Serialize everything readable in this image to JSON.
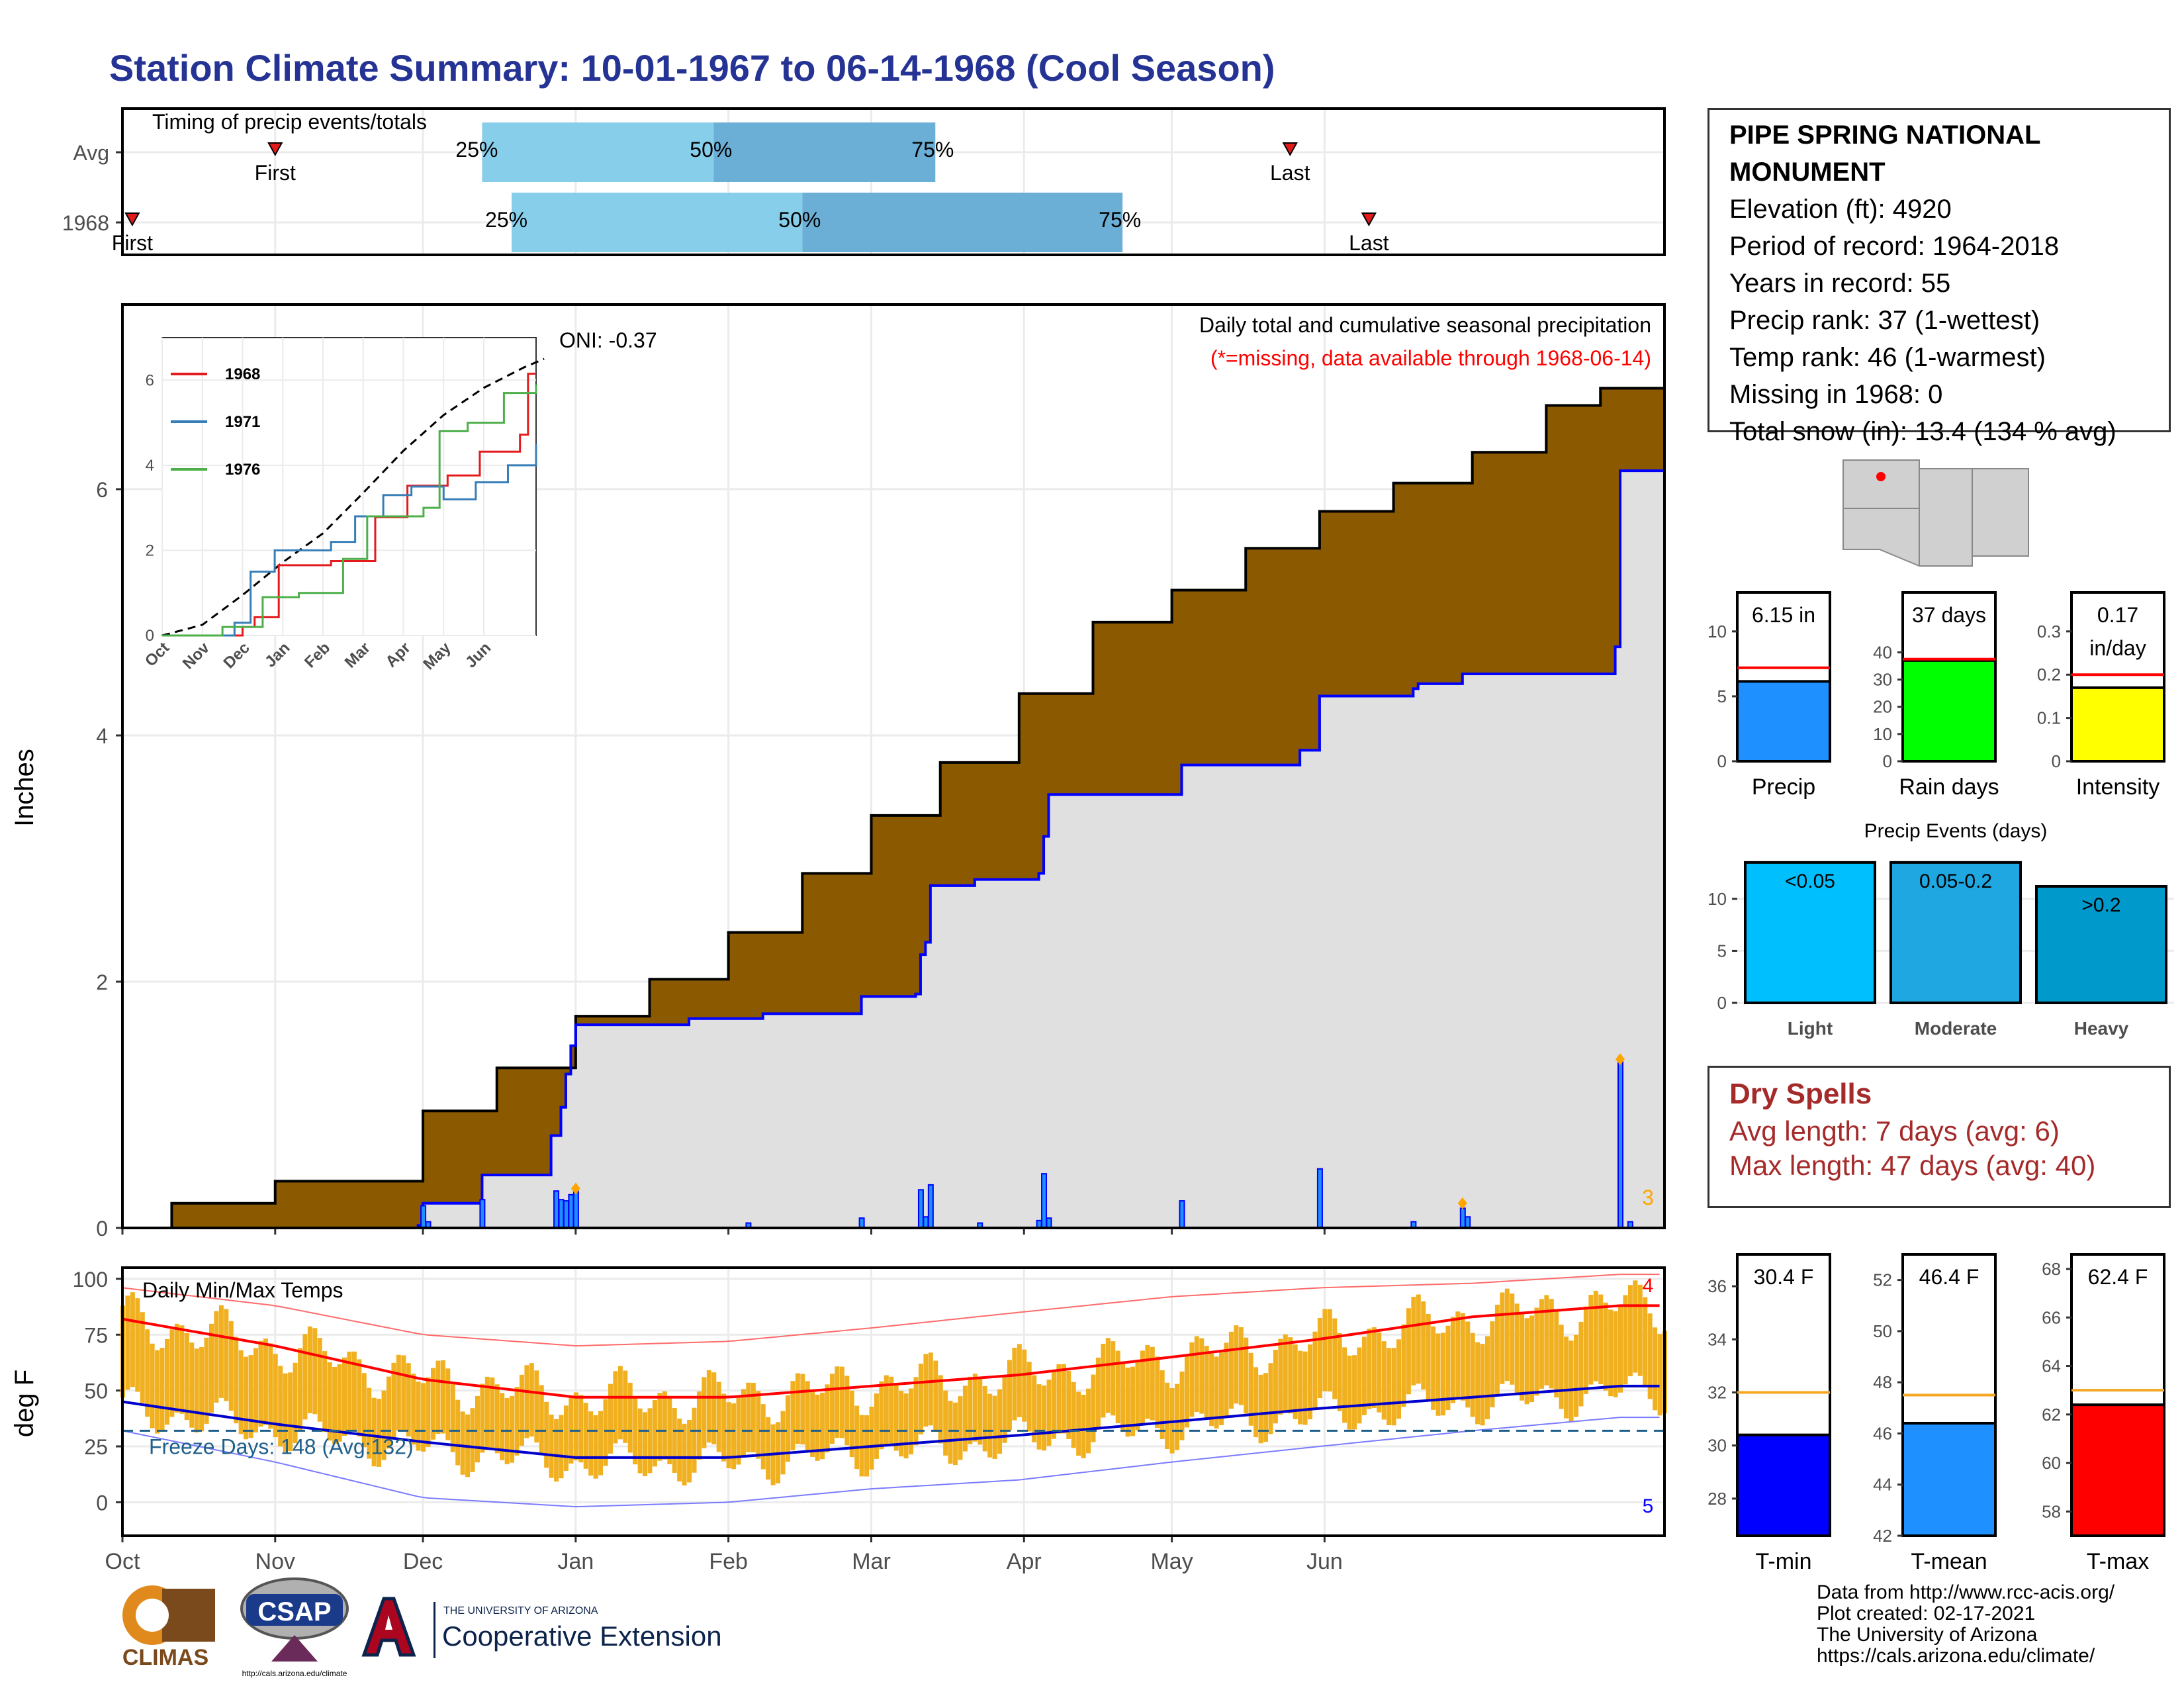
{
  "title": "Station Climate Summary: 10-01-1967 to 06-14-1968 (Cool Season)",
  "station": {
    "name": "PIPE SPRING NATIONAL MONUMENT",
    "elevation": "Elevation (ft): 4920",
    "period": "Period of record: 1964-2018",
    "years": "Years in record: 55",
    "precip_rank": "Precip rank: 37 (1-wettest)",
    "temp_rank": "Temp rank: 46 (1-warmest)",
    "missing": "Missing in 1968: 0",
    "snow": "Total snow (in): 13.4 (134 % avg)"
  },
  "dry_spells": {
    "title": "Dry Spells",
    "avg": "Avg length: 7 days (avg: 6)",
    "max": "Max length: 47 days (avg: 40)"
  },
  "credits": {
    "line1": "Data from http://www.rcc-acis.org/",
    "line2": "Plot created: 02-17-2021",
    "line3": "The University of Arizona",
    "line4": "https://cals.arizona.edu/climate/"
  },
  "logos": {
    "climas": "CLIMAS",
    "csap": "CSAP",
    "csap_url": "http://cals.arizona.edu/climate",
    "ua_small": "THE UNIVERSITY OF ARIZONA",
    "ua_big": "Cooperative Extension"
  },
  "colors": {
    "title": "#253494",
    "brown": "#8b5a00",
    "gray_fill": "#e0e0e0",
    "blue": "#0000ff",
    "light_blue": "#87ceeb",
    "mid_blue": "#6baed6",
    "orange_bar": "#f0b020",
    "red": "#ff0000",
    "dry_spell": "#a52a2a"
  },
  "chart_data": [
    {
      "id": "timing",
      "type": "bar",
      "title": "Timing of precip events/totals",
      "rows": [
        {
          "label": "Avg",
          "first": "Nov 1",
          "p25": "Dec 13",
          "p50": "Jan 29",
          "p75": "Mar 14",
          "last": "May 25"
        },
        {
          "label": "1968",
          "first": "Oct 3",
          "p25": "Dec 19",
          "p50": "Feb 16",
          "p75": "Apr 21",
          "last": "Jun 10"
        }
      ],
      "marker_labels": {
        "first": "First",
        "last": "Last",
        "p25": "25%",
        "p50": "50%",
        "p75": "75%"
      }
    },
    {
      "id": "precip",
      "type": "area",
      "ylabel": "Inches",
      "annotation": "Daily total and cumulative seasonal precipitation",
      "missing_note": "(*=missing, data available through 1968-06-14)",
      "oni": "ONI: -0.37",
      "ylim": [
        0,
        7.5
      ],
      "yticks": [
        0,
        2,
        4,
        6
      ],
      "xticks": [
        "Oct",
        "Nov",
        "Dec",
        "Jan",
        "Feb",
        "Mar",
        "Apr",
        "May",
        "Jun"
      ],
      "count_label": "3",
      "avg_cumulative": [
        [
          0,
          0
        ],
        [
          10,
          0.2
        ],
        [
          31,
          0.38
        ],
        [
          61,
          0.95
        ],
        [
          76,
          1.3
        ],
        [
          92,
          1.72
        ],
        [
          107,
          2.02
        ],
        [
          123,
          2.4
        ],
        [
          138,
          2.88
        ],
        [
          152,
          3.35
        ],
        [
          166,
          3.78
        ],
        [
          182,
          4.34
        ],
        [
          197,
          4.92
        ],
        [
          213,
          5.18
        ],
        [
          228,
          5.52
        ],
        [
          243,
          5.82
        ],
        [
          258,
          6.05
        ],
        [
          274,
          6.3
        ],
        [
          289,
          6.68
        ],
        [
          300,
          6.82
        ],
        [
          313,
          6.92
        ]
      ],
      "cumulative_1968": [
        [
          0,
          0
        ],
        [
          60,
          0.02
        ],
        [
          61,
          0.2
        ],
        [
          72,
          0.2
        ],
        [
          73,
          0.43
        ],
        [
          86,
          0.43
        ],
        [
          87,
          0.75
        ],
        [
          89,
          0.98
        ],
        [
          90,
          1.25
        ],
        [
          91,
          1.48
        ],
        [
          92,
          1.65
        ],
        [
          115,
          1.7
        ],
        [
          130,
          1.74
        ],
        [
          149,
          1.74
        ],
        [
          150,
          1.88
        ],
        [
          161,
          1.9
        ],
        [
          162,
          2.22
        ],
        [
          163,
          2.32
        ],
        [
          164,
          2.78
        ],
        [
          173,
          2.83
        ],
        [
          186,
          2.88
        ],
        [
          187,
          3.18
        ],
        [
          188,
          3.52
        ],
        [
          214,
          3.52
        ],
        [
          215,
          3.76
        ],
        [
          239,
          3.88
        ],
        [
          243,
          4.32
        ],
        [
          262,
          4.38
        ],
        [
          263,
          4.42
        ],
        [
          271,
          4.42
        ],
        [
          272,
          4.5
        ],
        [
          303,
          4.72
        ],
        [
          304,
          6.15
        ],
        [
          313,
          6.15
        ]
      ],
      "daily_precip": [
        [
          61,
          0.18
        ],
        [
          62,
          0.05
        ],
        [
          73,
          0.23
        ],
        [
          88,
          0.3
        ],
        [
          89,
          0.23
        ],
        [
          90,
          0.22
        ],
        [
          91,
          0.27
        ],
        [
          92,
          0.32
        ],
        [
          127,
          0.04
        ],
        [
          150,
          0.08
        ],
        [
          162,
          0.31
        ],
        [
          163,
          0.09
        ],
        [
          164,
          0.35
        ],
        [
          174,
          0.04
        ],
        [
          186,
          0.06
        ],
        [
          187,
          0.44
        ],
        [
          188,
          0.08
        ],
        [
          215,
          0.22
        ],
        [
          243,
          0.48
        ],
        [
          262,
          0.05
        ],
        [
          272,
          0.16
        ],
        [
          273,
          0.09
        ],
        [
          304,
          1.37
        ],
        [
          306,
          0.05
        ]
      ],
      "inset": {
        "xticks": [
          "Oct",
          "Nov",
          "Dec",
          "Jan",
          "Feb",
          "Mar",
          "Apr",
          "May",
          "Jun"
        ],
        "yticks": [
          0,
          2,
          4,
          6
        ],
        "ylim": [
          0,
          7
        ],
        "series": [
          {
            "name": "1968",
            "color": "#e41a1c",
            "values": [
              [
                0,
                0
              ],
              [
                1,
                0
              ],
              [
                2,
                0.2
              ],
              [
                2.3,
                0.43
              ],
              [
                2.9,
                1.65
              ],
              [
                4.2,
                1.75
              ],
              [
                5.3,
                2.78
              ],
              [
                6.1,
                3.52
              ],
              [
                7.1,
                3.76
              ],
              [
                7.9,
                4.32
              ],
              [
                8.9,
                4.72
              ],
              [
                9.1,
                6.15
              ],
              [
                9.3,
                6.15
              ]
            ]
          },
          {
            "name": "1971",
            "color": "#377eb8",
            "values": [
              [
                0,
                0
              ],
              [
                1.8,
                0.3
              ],
              [
                2.2,
                1.5
              ],
              [
                2.8,
                2.0
              ],
              [
                4.2,
                2.2
              ],
              [
                4.8,
                2.8
              ],
              [
                5.5,
                3.3
              ],
              [
                6.2,
                3.5
              ],
              [
                7.0,
                3.2
              ],
              [
                7.8,
                3.6
              ],
              [
                8.6,
                4.0
              ],
              [
                9.3,
                4.5
              ]
            ]
          },
          {
            "name": "1976",
            "color": "#4daf4a",
            "values": [
              [
                0,
                0
              ],
              [
                1.5,
                0.2
              ],
              [
                2.5,
                0.9
              ],
              [
                3.4,
                1.0
              ],
              [
                4.5,
                1.8
              ],
              [
                5.1,
                2.8
              ],
              [
                6.5,
                3.0
              ],
              [
                6.9,
                4.8
              ],
              [
                7.6,
                5.0
              ],
              [
                8.5,
                5.7
              ],
              [
                9.3,
                5.9
              ]
            ]
          }
        ],
        "avg_dashed": [
          [
            0,
            0
          ],
          [
            1,
            0.25
          ],
          [
            2,
            0.95
          ],
          [
            3,
            1.72
          ],
          [
            4,
            2.4
          ],
          [
            5,
            3.35
          ],
          [
            6,
            4.34
          ],
          [
            7,
            5.18
          ],
          [
            8,
            5.82
          ],
          [
            9,
            6.3
          ],
          [
            9.5,
            6.5
          ]
        ]
      }
    },
    {
      "id": "temps",
      "type": "bar",
      "title": "Daily Min/Max Temps",
      "ylabel": "deg F",
      "ylim": [
        -15,
        105
      ],
      "yticks": [
        0,
        25,
        50,
        75,
        100
      ],
      "xticks": [
        "Oct",
        "Nov",
        "Dec",
        "Jan",
        "Feb",
        "Mar",
        "Apr",
        "May",
        "Jun"
      ],
      "freeze_label": "Freeze Days: 148 (Avg:132)",
      "freeze_line": 32,
      "record_high_count": "4",
      "record_low_count": "5",
      "avg_max": [
        [
          0,
          82
        ],
        [
          31,
          70
        ],
        [
          61,
          55
        ],
        [
          92,
          47
        ],
        [
          123,
          47
        ],
        [
          152,
          52
        ],
        [
          182,
          57
        ],
        [
          213,
          65
        ],
        [
          243,
          73
        ],
        [
          274,
          83
        ],
        [
          304,
          88
        ],
        [
          313,
          88
        ]
      ],
      "avg_min": [
        [
          0,
          45
        ],
        [
          31,
          35
        ],
        [
          61,
          27
        ],
        [
          92,
          20
        ],
        [
          123,
          20
        ],
        [
          152,
          25
        ],
        [
          182,
          30
        ],
        [
          213,
          36
        ],
        [
          243,
          42
        ],
        [
          274,
          47
        ],
        [
          304,
          52
        ],
        [
          313,
          52
        ]
      ],
      "record_max": [
        [
          0,
          96
        ],
        [
          31,
          88
        ],
        [
          61,
          75
        ],
        [
          92,
          70
        ],
        [
          123,
          72
        ],
        [
          152,
          78
        ],
        [
          182,
          85
        ],
        [
          213,
          92
        ],
        [
          243,
          96
        ],
        [
          274,
          98
        ],
        [
          304,
          102
        ],
        [
          313,
          102
        ]
      ],
      "record_min": [
        [
          0,
          32
        ],
        [
          31,
          18
        ],
        [
          61,
          2
        ],
        [
          92,
          -2
        ],
        [
          123,
          0
        ],
        [
          152,
          6
        ],
        [
          182,
          10
        ],
        [
          213,
          18
        ],
        [
          243,
          25
        ],
        [
          274,
          32
        ],
        [
          304,
          38
        ],
        [
          313,
          38
        ]
      ]
    },
    {
      "id": "summary_precip",
      "type": "bar",
      "panels": [
        {
          "label": "Precip",
          "value": 6.15,
          "avg": 7.2,
          "text": "6.15 in",
          "yticks": [
            0,
            5,
            10
          ],
          "ylim": [
            0,
            13
          ],
          "color": "#1e90ff"
        },
        {
          "label": "Rain days",
          "value": 37,
          "avg": 37.5,
          "text": "37 days",
          "yticks": [
            0,
            10,
            20,
            30,
            40
          ],
          "ylim": [
            0,
            62
          ],
          "color": "#00ff00"
        },
        {
          "label": "Intensity",
          "value": 0.17,
          "avg": 0.2,
          "text": "0.17 in/day",
          "yticks": [
            0.0,
            0.1,
            0.2,
            0.3
          ],
          "ylim": [
            0,
            0.39
          ],
          "color": "#ffff00"
        }
      ]
    },
    {
      "id": "precip_events",
      "type": "bar",
      "title": "Precip Events (days)",
      "categories": [
        "Light",
        "Moderate",
        "Heavy"
      ],
      "bar_labels": [
        "<0.05",
        "0.05-0.2",
        ">0.2"
      ],
      "values": [
        13.5,
        13.5,
        11.2
      ],
      "colors": [
        "#00bfff",
        "#1ea7e0",
        "#0099cc"
      ],
      "yticks": [
        0,
        5,
        10
      ],
      "ylim": [
        0,
        14
      ]
    },
    {
      "id": "summary_temps",
      "type": "bar",
      "panels": [
        {
          "label": "T-min",
          "value": 30.4,
          "avg": 32,
          "text": "30.4 F",
          "yticks": [
            28,
            30,
            32,
            34,
            36
          ],
          "ylim": [
            26.6,
            37.2
          ],
          "color": "#0000ff"
        },
        {
          "label": "T-mean",
          "value": 46.4,
          "avg": 47.5,
          "text": "46.4 F",
          "yticks": [
            42,
            44,
            46,
            48,
            50,
            52
          ],
          "ylim": [
            42,
            53
          ],
          "color": "#1e90ff"
        },
        {
          "label": "T-max",
          "value": 62.4,
          "avg": 63,
          "text": "62.4 F",
          "yticks": [
            58,
            60,
            62,
            64,
            66,
            68
          ],
          "ylim": [
            57,
            68.6
          ],
          "color": "#ff0000"
        }
      ]
    }
  ]
}
